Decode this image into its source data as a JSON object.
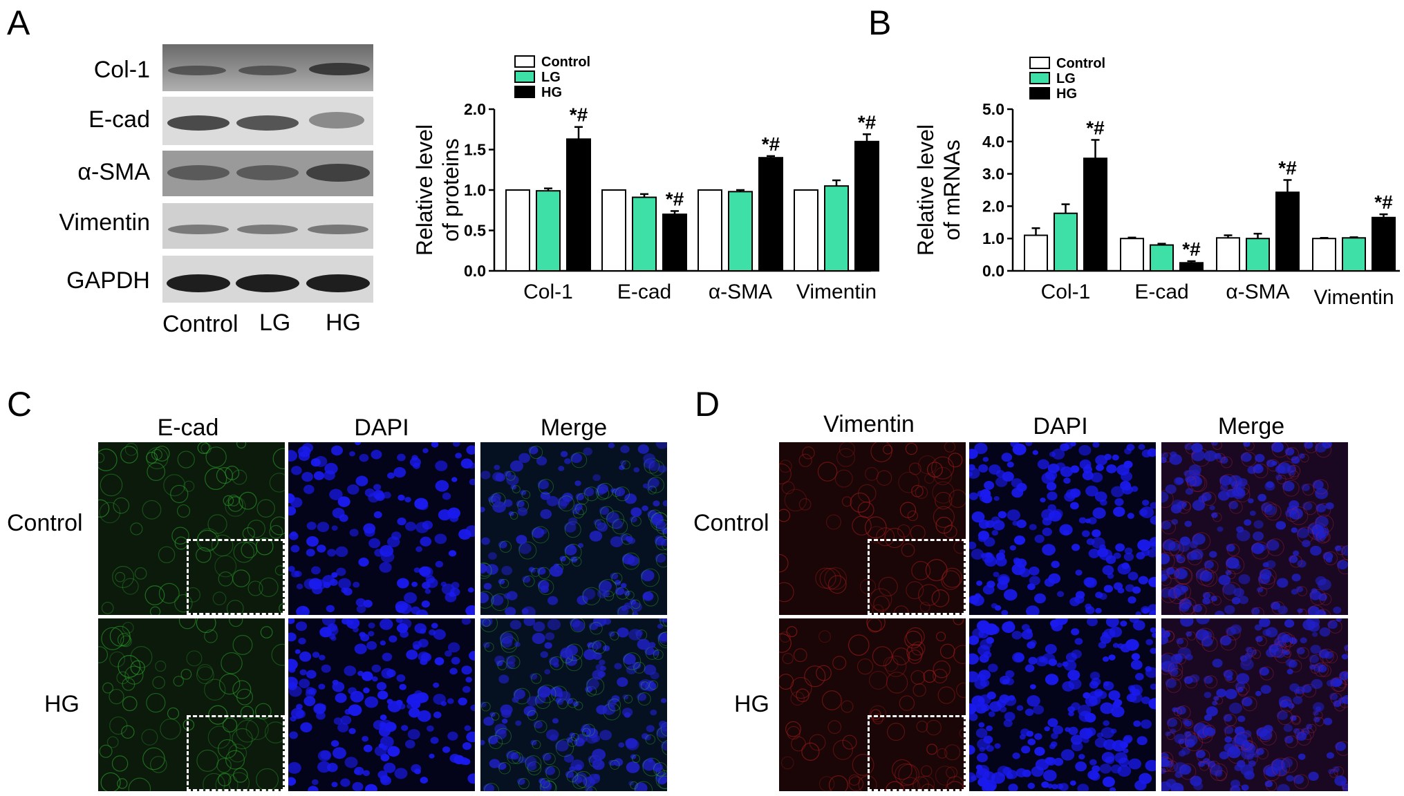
{
  "panels": {
    "a": "A",
    "b": "B",
    "c": "C",
    "d": "D"
  },
  "western_blot": {
    "rows": [
      "Col-1",
      "E-cad",
      "α-SMA",
      "Vimentin",
      "GAPDH"
    ],
    "lanes": [
      "Control",
      "LG",
      "HG"
    ]
  },
  "chart_data": [
    {
      "type": "bar",
      "ylabel": "Relative level\nof proteins",
      "ylim": [
        0,
        2.0
      ],
      "yticks": [
        "0.0",
        "0.5",
        "1.0",
        "1.5",
        "2.0"
      ],
      "categories": [
        "Col-1",
        "E-cad",
        "α-SMA",
        "Vimentin"
      ],
      "legend_position": "top-left",
      "series": [
        {
          "name": "Control",
          "color": "#ffffff",
          "values": [
            1.0,
            1.0,
            1.0,
            1.0
          ],
          "errors": [
            0,
            0,
            0,
            0
          ]
        },
        {
          "name": "LG",
          "color": "#3ee0a8",
          "values": [
            0.99,
            0.91,
            0.98,
            1.05
          ],
          "errors": [
            0.03,
            0.04,
            0.02,
            0.07
          ]
        },
        {
          "name": "HG",
          "color": "#000000",
          "values": [
            1.63,
            0.7,
            1.4,
            1.6
          ],
          "errors": [
            0.15,
            0.04,
            0.02,
            0.09
          ]
        }
      ],
      "annotations": [
        "*#",
        "*#",
        "*#",
        "*#"
      ]
    },
    {
      "type": "bar",
      "ylabel": "Relative level\nof mRNAs",
      "ylim": [
        0,
        5.0
      ],
      "yticks": [
        "0.0",
        "1.0",
        "2.0",
        "3.0",
        "4.0",
        "5.0"
      ],
      "categories": [
        "Col-1",
        "E-cad",
        "α-SMA",
        "Vimentin"
      ],
      "legend_position": "top-left",
      "series": [
        {
          "name": "Control",
          "color": "#ffffff",
          "values": [
            1.1,
            1.0,
            1.02,
            1.0
          ],
          "errors": [
            0.22,
            0.03,
            0.08,
            0.02
          ]
        },
        {
          "name": "LG",
          "color": "#3ee0a8",
          "values": [
            1.78,
            0.8,
            1.0,
            1.02
          ],
          "errors": [
            0.28,
            0.04,
            0.15,
            0.02
          ]
        },
        {
          "name": "HG",
          "color": "#000000",
          "values": [
            3.48,
            0.25,
            2.43,
            1.65
          ],
          "errors": [
            0.57,
            0.05,
            0.38,
            0.1
          ]
        }
      ],
      "annotations": [
        "*#",
        "*#",
        "*#",
        "*#"
      ]
    }
  ],
  "immunofluorescence": {
    "c": {
      "columns": [
        "E-cad",
        "DAPI",
        "Merge"
      ],
      "rows": [
        "Control",
        "HG"
      ],
      "stain_color": "#28b428"
    },
    "d": {
      "columns": [
        "Vimentin",
        "DAPI",
        "Merge"
      ],
      "rows": [
        "Control",
        "HG"
      ],
      "stain_color": "#c81e1e"
    }
  }
}
